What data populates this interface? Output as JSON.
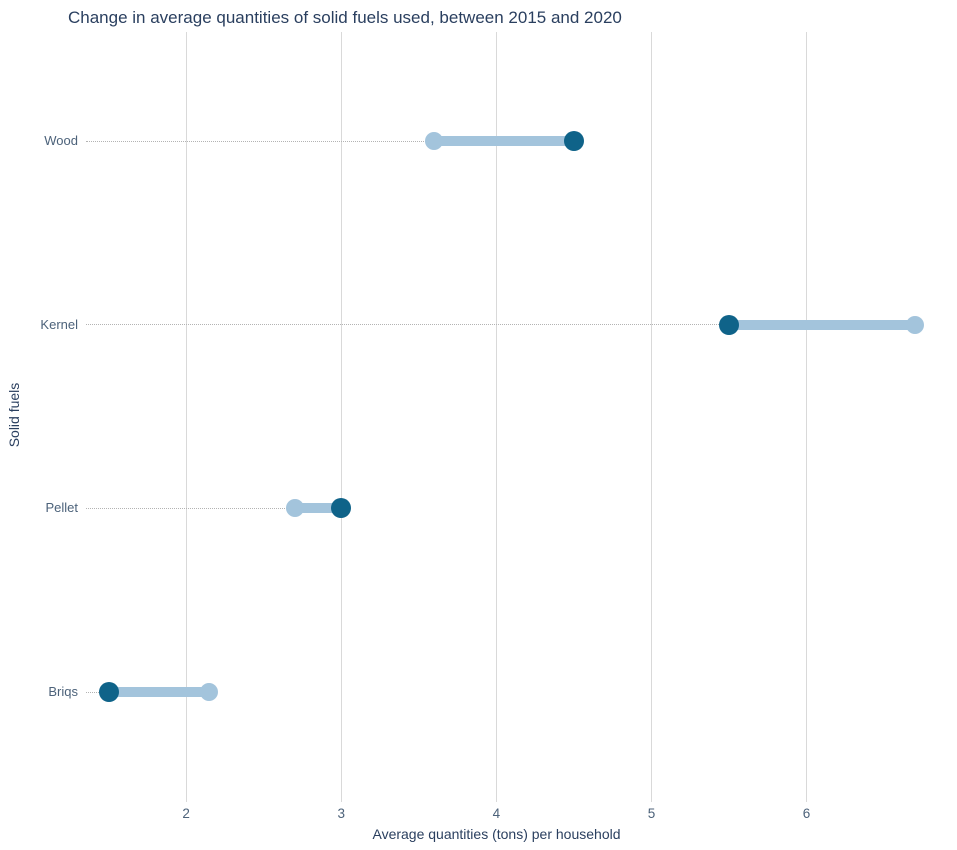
{
  "page": {
    "background": "#ffffff"
  },
  "chart_data": {
    "type": "scatter",
    "subtype": "dumbbell",
    "title": "Change in average quantities of solid fuels used, between 2015 and 2020",
    "xlabel": "Average quantities (tons) per household",
    "ylabel": "Solid fuels",
    "categories": [
      "Wood",
      "Kernel",
      "Pellet",
      "Briqs"
    ],
    "series": [
      {
        "name": "light-dot",
        "color": "#a3c4dc",
        "values": [
          3.6,
          6.7,
          2.7,
          2.15
        ]
      },
      {
        "name": "dark-dot",
        "color": "#0f6389",
        "values": [
          4.5,
          5.5,
          3.0,
          1.5
        ]
      }
    ],
    "x_ticks": [
      2,
      3,
      4,
      5,
      6
    ],
    "xlim": [
      1.38,
      6.97
    ],
    "grid": "vertical-only",
    "legend": "none",
    "styles": {
      "grid_color": "#d9d9d9",
      "leader_line_color": "#b3b3b3",
      "title_color": "#2a3f5f",
      "axis_title_color": "#2a3f5f",
      "tick_label_color": "#4c627a",
      "connector_color": "#a3c4dc"
    }
  }
}
